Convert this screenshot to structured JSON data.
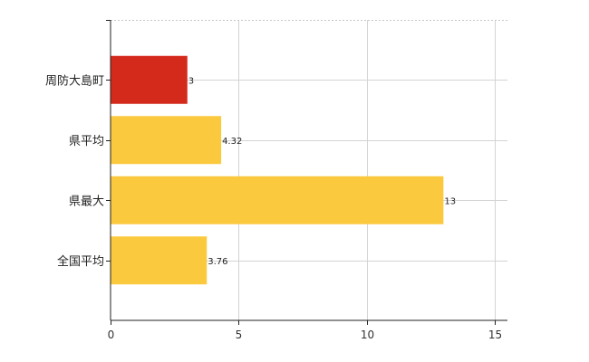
{
  "chart_data": {
    "type": "bar",
    "orientation": "horizontal",
    "categories": [
      "周防大島町",
      "県平均",
      "県最大",
      "全国平均"
    ],
    "values": [
      3,
      4.32,
      13,
      3.76
    ],
    "data_labels": [
      "3",
      "4.32",
      "13",
      "3.76"
    ],
    "colors": [
      "#d42a1c",
      "#fbc93d",
      "#fbc93d",
      "#fbc93d"
    ],
    "xlim": [
      0,
      15.5
    ],
    "x_ticks": [
      0,
      5,
      10,
      15
    ],
    "x_tick_labels": [
      "0",
      "5",
      "10",
      "15"
    ],
    "grid": true,
    "title": "",
    "xlabel": "",
    "ylabel": ""
  }
}
